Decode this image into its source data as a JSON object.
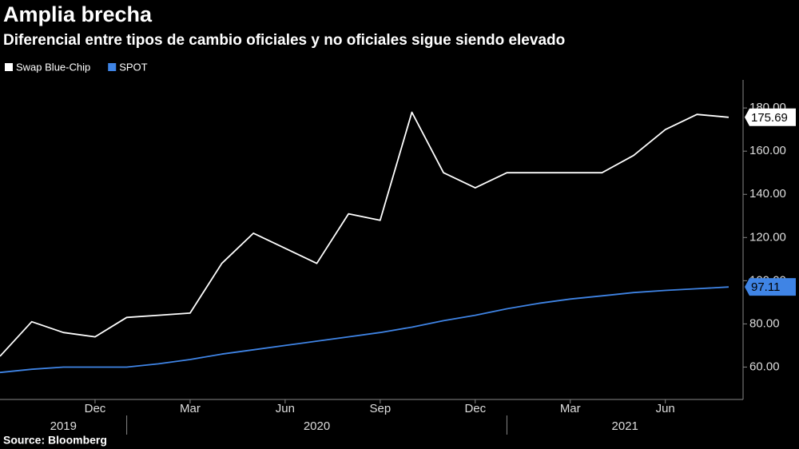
{
  "chart_data": {
    "type": "line",
    "title": "Amplia brecha",
    "subtitle": "Diferencial entre tipos de cambio oficiales y no oficiales sigue siendo elevado",
    "source": "Source: Bloomberg",
    "legend": "top-left",
    "x": [
      "2019-09",
      "2019-10",
      "2019-11",
      "2019-12",
      "2020-01",
      "2020-02",
      "2020-03",
      "2020-04",
      "2020-05",
      "2020-06",
      "2020-07",
      "2020-08",
      "2020-09",
      "2020-10",
      "2020-11",
      "2020-12",
      "2021-01",
      "2021-02",
      "2021-03",
      "2021-04",
      "2021-05",
      "2021-06",
      "2021-07",
      "2021-08"
    ],
    "xlim": [
      "2019-09",
      "2021-08"
    ],
    "xticks": [
      {
        "value": "2019-12",
        "label": "Dec"
      },
      {
        "value": "2020-03",
        "label": "Mar"
      },
      {
        "value": "2020-06",
        "label": "Jun"
      },
      {
        "value": "2020-09",
        "label": "Sep"
      },
      {
        "value": "2020-12",
        "label": "Dec"
      },
      {
        "value": "2021-03",
        "label": "Mar"
      },
      {
        "value": "2021-06",
        "label": "Jun"
      }
    ],
    "years": [
      "2019",
      "2020",
      "2021"
    ],
    "ylim": [
      45,
      193
    ],
    "yticks": [
      {
        "value": 60,
        "label": "60.00"
      },
      {
        "value": 80,
        "label": "80.00"
      },
      {
        "value": 100,
        "label": "100.00"
      },
      {
        "value": 120,
        "label": "120.00"
      },
      {
        "value": 140,
        "label": "140.00"
      },
      {
        "value": 160,
        "label": "160.00"
      },
      {
        "value": 180,
        "label": "180.00"
      }
    ],
    "series": [
      {
        "name": "Swap Blue-Chip",
        "color": "#ffffff",
        "values": [
          65,
          81,
          76,
          74,
          83,
          84,
          85,
          108,
          122,
          115,
          108,
          131,
          128,
          178,
          150,
          143,
          150,
          150,
          150,
          150,
          158,
          170,
          177,
          175.69
        ]
      },
      {
        "name": "SPOT",
        "color": "#3f84e5",
        "values": [
          57.5,
          59,
          60,
          60,
          60,
          61.5,
          63.5,
          66,
          68,
          70,
          72,
          74,
          76,
          78.5,
          81.5,
          84,
          87,
          89.5,
          91.5,
          93,
          94.5,
          95.5,
          96.3,
          97.11
        ]
      }
    ]
  }
}
